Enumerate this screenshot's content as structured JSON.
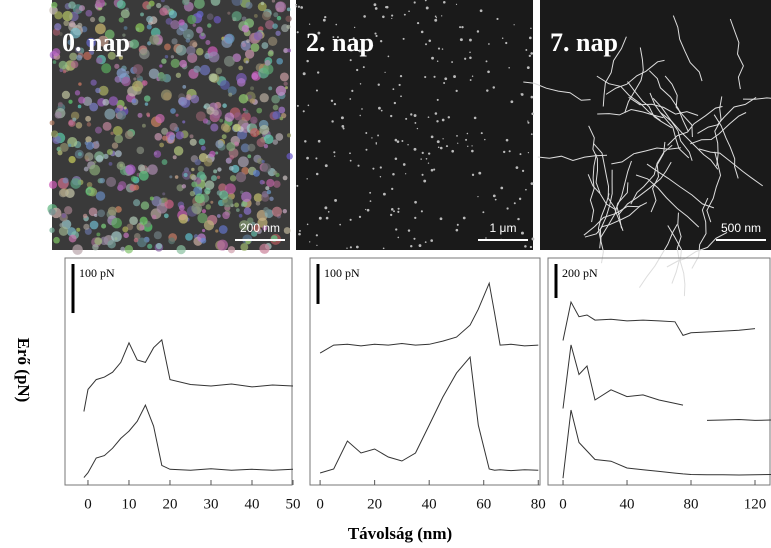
{
  "figure": {
    "y_label": "Erő (pN)",
    "x_label": "Távolság (nm)",
    "images": [
      {
        "label": "0. nap",
        "scale": "200 nm"
      },
      {
        "label": "2. nap",
        "scale": "1 μm"
      },
      {
        "label": "7. nap",
        "scale": "500 nm"
      }
    ]
  },
  "chart_data": [
    {
      "type": "line",
      "scale_bar": {
        "value": 100,
        "label": "100 pN"
      },
      "x": [
        -1,
        0,
        2,
        4,
        6,
        8,
        10,
        12,
        14,
        16,
        18,
        20,
        25,
        30,
        35,
        40,
        45,
        50
      ],
      "series": [
        {
          "color": "#333333",
          "values": [
            150,
            195,
            215,
            220,
            230,
            250,
            290,
            255,
            250,
            280,
            296,
            215,
            205,
            202,
            206,
            200,
            204,
            202
          ]
        },
        {
          "color": "#333333",
          "values": [
            15,
            25,
            55,
            60,
            75,
            95,
            110,
            130,
            163,
            120,
            40,
            32,
            30,
            33,
            30,
            32,
            30,
            32
          ]
        }
      ],
      "xlim": [
        -5.6,
        50
      ],
      "xticks": [
        0,
        10,
        20,
        30,
        40,
        50
      ],
      "ylim": [
        0,
        463
      ]
    },
    {
      "type": "line",
      "scale_bar": {
        "value": 100,
        "label": "100 pN"
      },
      "x": [
        0,
        5,
        10,
        15,
        20,
        25,
        30,
        35,
        40,
        45,
        50,
        55,
        58,
        62,
        64,
        66,
        70,
        75,
        80
      ],
      "series": [
        {
          "color": "#333333",
          "values": [
            330,
            350,
            352,
            348,
            352,
            350,
            354,
            350,
            352,
            360,
            370,
            400,
            440,
            505,
            430,
            350,
            352,
            348,
            350
          ]
        },
        {
          "color": "#333333",
          "values": [
            30,
            40,
            110,
            80,
            90,
            70,
            60,
            80,
            150,
            220,
            280,
            320,
            150,
            40,
            37,
            38,
            36,
            38,
            37
          ]
        }
      ],
      "xlim": [
        -3.7,
        81
      ],
      "xticks": [
        0,
        20,
        40,
        60,
        80
      ],
      "ylim": [
        0,
        568
      ]
    },
    {
      "type": "line",
      "scale_bar": {
        "value": 200,
        "label": "200 pN"
      },
      "x": [
        -5,
        0,
        5,
        10,
        15,
        20,
        30,
        40,
        50,
        60,
        70,
        75,
        80,
        90,
        100,
        110,
        120,
        130
      ],
      "series": [
        {
          "color": "#333333",
          "values": [
            null,
            850,
            1076,
            990,
            1000,
            970,
            975,
            965,
            970,
            965,
            960,
            880,
            895,
            900,
            905,
            910,
            920,
            null
          ]
        },
        {
          "color": "#333333",
          "values": [
            null,
            450,
            824,
            650,
            700,
            500,
            560,
            520,
            530,
            500,
            480,
            470,
            null,
            380,
            382,
            385,
            380,
            382
          ]
        },
        {
          "color": "#333333",
          "values": [
            null,
            40,
            441,
            250,
            200,
            150,
            140,
            100,
            90,
            80,
            70,
            65,
            62,
            60,
            60,
            59,
            60,
            62
          ]
        }
      ],
      "xlim": [
        -9.4,
        130
      ],
      "xticks": [
        0,
        40,
        80,
        120
      ],
      "ylim": [
        0,
        1335
      ]
    }
  ]
}
